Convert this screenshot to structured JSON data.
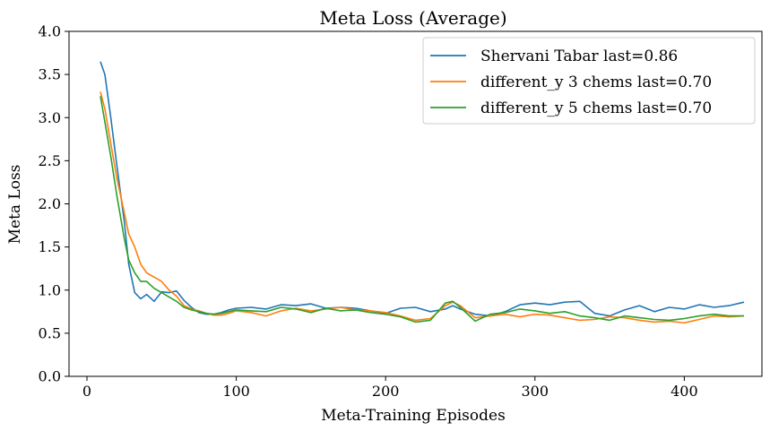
{
  "chart_data": {
    "type": "line",
    "title": "Meta Loss (Average)",
    "xlabel": "Meta-Training Episodes",
    "ylabel": "Meta Loss",
    "xlim": [
      -12,
      452
    ],
    "ylim": [
      0,
      4.0
    ],
    "xticks": [
      0,
      100,
      200,
      300,
      400
    ],
    "yticks": [
      0.0,
      0.5,
      1.0,
      1.5,
      2.0,
      2.5,
      3.0,
      3.5,
      4.0
    ],
    "xtick_labels": [
      "0",
      "100",
      "200",
      "300",
      "400"
    ],
    "ytick_labels": [
      "0.0",
      "0.5",
      "1.0",
      "1.5",
      "2.0",
      "2.5",
      "3.0",
      "3.5",
      "4.0"
    ],
    "grid": false,
    "legend_position": "top-right",
    "series": [
      {
        "name": "Shervani Tabar last=0.86",
        "color": "#1f77b4",
        "x": [
          9,
          12,
          16,
          20,
          25,
          28,
          32,
          36,
          40,
          45,
          50,
          55,
          60,
          65,
          70,
          75,
          80,
          85,
          90,
          95,
          100,
          110,
          120,
          130,
          140,
          150,
          160,
          170,
          180,
          190,
          200,
          210,
          220,
          230,
          240,
          245,
          250,
          260,
          270,
          280,
          290,
          300,
          310,
          320,
          330,
          340,
          350,
          360,
          370,
          380,
          390,
          400,
          410,
          420,
          430,
          440
        ],
        "y": [
          3.65,
          3.5,
          3.0,
          2.45,
          1.8,
          1.3,
          0.97,
          0.9,
          0.95,
          0.87,
          0.98,
          0.97,
          0.99,
          0.88,
          0.8,
          0.74,
          0.72,
          0.72,
          0.74,
          0.77,
          0.79,
          0.8,
          0.78,
          0.83,
          0.82,
          0.84,
          0.79,
          0.8,
          0.79,
          0.76,
          0.73,
          0.79,
          0.8,
          0.75,
          0.78,
          0.82,
          0.78,
          0.72,
          0.7,
          0.75,
          0.83,
          0.85,
          0.83,
          0.86,
          0.87,
          0.73,
          0.7,
          0.77,
          0.82,
          0.75,
          0.8,
          0.78,
          0.83,
          0.8,
          0.82,
          0.86
        ]
      },
      {
        "name": "different_y 3 chems last=0.70",
        "color": "#ff7f0e",
        "x": [
          9,
          12,
          16,
          20,
          25,
          28,
          32,
          36,
          40,
          45,
          50,
          55,
          60,
          65,
          70,
          75,
          80,
          85,
          90,
          95,
          100,
          110,
          120,
          130,
          140,
          150,
          160,
          170,
          180,
          190,
          200,
          210,
          220,
          230,
          240,
          245,
          250,
          260,
          270,
          280,
          290,
          300,
          310,
          320,
          330,
          340,
          350,
          360,
          370,
          380,
          390,
          400,
          410,
          420,
          430,
          440
        ],
        "y": [
          3.3,
          3.1,
          2.7,
          2.3,
          1.9,
          1.65,
          1.5,
          1.3,
          1.2,
          1.15,
          1.1,
          1.0,
          0.93,
          0.82,
          0.78,
          0.76,
          0.73,
          0.71,
          0.71,
          0.73,
          0.76,
          0.74,
          0.7,
          0.76,
          0.79,
          0.76,
          0.78,
          0.8,
          0.77,
          0.76,
          0.74,
          0.7,
          0.65,
          0.67,
          0.82,
          0.86,
          0.82,
          0.68,
          0.7,
          0.72,
          0.69,
          0.72,
          0.71,
          0.68,
          0.65,
          0.66,
          0.69,
          0.68,
          0.65,
          0.63,
          0.64,
          0.62,
          0.66,
          0.7,
          0.69,
          0.7
        ]
      },
      {
        "name": "different_y 5 chems last=0.70",
        "color": "#2ca02c",
        "x": [
          9,
          12,
          16,
          20,
          25,
          28,
          32,
          36,
          40,
          45,
          50,
          55,
          60,
          65,
          70,
          75,
          80,
          85,
          90,
          95,
          100,
          110,
          120,
          130,
          140,
          150,
          160,
          170,
          180,
          190,
          200,
          210,
          220,
          230,
          240,
          245,
          250,
          260,
          270,
          280,
          290,
          300,
          310,
          320,
          330,
          340,
          350,
          360,
          370,
          380,
          390,
          400,
          410,
          420,
          430,
          440
        ],
        "y": [
          3.25,
          2.95,
          2.55,
          2.1,
          1.6,
          1.35,
          1.2,
          1.1,
          1.1,
          1.02,
          0.97,
          0.92,
          0.87,
          0.8,
          0.77,
          0.75,
          0.73,
          0.72,
          0.73,
          0.75,
          0.77,
          0.76,
          0.75,
          0.8,
          0.78,
          0.74,
          0.79,
          0.76,
          0.77,
          0.74,
          0.72,
          0.69,
          0.63,
          0.65,
          0.85,
          0.87,
          0.8,
          0.64,
          0.72,
          0.74,
          0.78,
          0.76,
          0.73,
          0.75,
          0.7,
          0.68,
          0.65,
          0.7,
          0.68,
          0.66,
          0.65,
          0.67,
          0.7,
          0.72,
          0.7,
          0.7
        ]
      }
    ]
  }
}
